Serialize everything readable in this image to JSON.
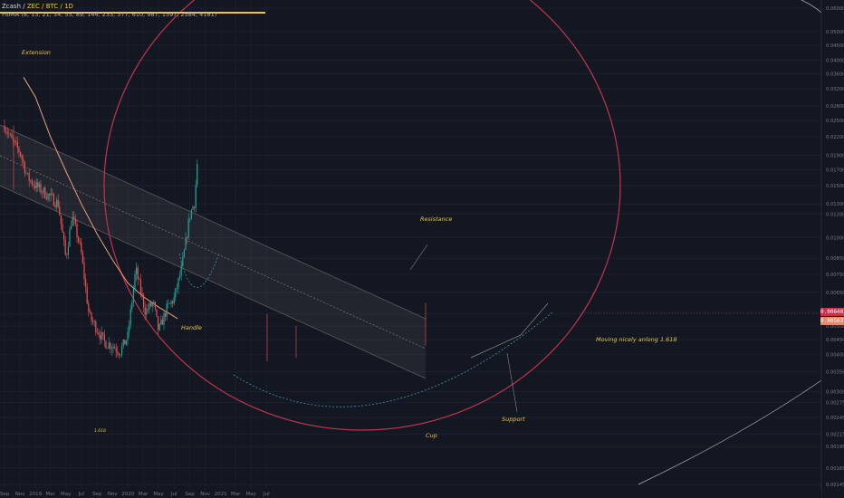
{
  "header": {
    "symbol_prefix": "Zcash / ",
    "symbol_accent": "ZEC / BTC / 1D",
    "indicator": "FibMA (8, 13, 21, 34, 55, 89, 144, 233, 377, 610, 987, 1597, 2584, 4181)"
  },
  "badges": {
    "current": "0.006402",
    "ma": "0.005637"
  },
  "colors": {
    "background": "#131722",
    "candle_up": "#26a69a",
    "candle_down": "#ef5350",
    "ellipse": "#c2344b",
    "channel": "#5a5a5a",
    "ma_line": "#e8a07a",
    "annotation": "#e8c34c",
    "arc": "#4a90a8",
    "badge_current": "#c2344b",
    "badge_ma": "#e48a6a"
  },
  "chart_data": {
    "type": "candlestick",
    "title": "",
    "xlabel": "",
    "ylabel": "",
    "y_scale": "log",
    "ylim": [
      0.0014,
      0.0605
    ],
    "x_tick_labels": [
      "Sep",
      "Nov",
      "2019",
      "Mar",
      "May",
      "Jul",
      "Sep",
      "Nov",
      "2020",
      "Mar",
      "May",
      "Jul",
      "Sep",
      "Nov",
      "2021",
      "Mar",
      "May",
      "Jul"
    ],
    "y_tick_labels": [
      "0.060000",
      "0.050000",
      "0.045000",
      "0.040000",
      "0.036000",
      "0.032000",
      "0.028000",
      "0.025000",
      "0.022000",
      "0.019000",
      "0.017000",
      "0.015000",
      "0.013000",
      "0.012000",
      "0.010000",
      "0.008500",
      "0.007500",
      "0.006500",
      "0.005500",
      "0.005000",
      "0.004500",
      "0.004000",
      "0.003500",
      "0.003000",
      "0.002750",
      "0.002450",
      "0.002150",
      "0.001950",
      "0.001650",
      "0.001450"
    ],
    "price_path": [
      [
        "2018-09-01",
        0.024
      ],
      [
        "2018-10-01",
        0.0212
      ],
      [
        "2018-11-01",
        0.0195
      ],
      [
        "2018-12-01",
        0.016
      ],
      [
        "2019-01-01",
        0.015
      ],
      [
        "2019-02-01",
        0.0143
      ],
      [
        "2019-03-01",
        0.0137
      ],
      [
        "2019-04-01",
        0.013
      ],
      [
        "2019-05-01",
        0.0085
      ],
      [
        "2019-05-25",
        0.0118
      ],
      [
        "2019-06-15",
        0.0102
      ],
      [
        "2019-07-01",
        0.0088
      ],
      [
        "2019-08-01",
        0.0054
      ],
      [
        "2019-09-01",
        0.0049
      ],
      [
        "2019-10-01",
        0.0044
      ],
      [
        "2019-11-01",
        0.0043
      ],
      [
        "2019-12-01",
        0.0041
      ],
      [
        "2019-12-31",
        0.0046
      ],
      [
        "2020-02-01",
        0.0078
      ],
      [
        "2020-03-10",
        0.0056
      ],
      [
        "2020-04-10",
        0.006
      ],
      [
        "2020-05-01",
        0.0048
      ],
      [
        "2020-06-01",
        0.0057
      ],
      [
        "2020-07-01",
        0.0062
      ],
      [
        "2020-08-01",
        0.0079
      ],
      [
        "2020-09-01",
        0.0119
      ],
      [
        "2020-09-20",
        0.0132
      ],
      [
        "2020-10-01",
        0.018
      ]
    ],
    "fib_ma_path": [
      [
        "2018-11-15",
        0.035
      ],
      [
        "2019-01-01",
        0.03
      ],
      [
        "2019-03-01",
        0.022
      ],
      [
        "2019-05-01",
        0.0168
      ],
      [
        "2019-07-01",
        0.013
      ],
      [
        "2019-09-01",
        0.0103
      ],
      [
        "2019-11-01",
        0.0084
      ],
      [
        "2020-01-01",
        0.007
      ],
      [
        "2020-03-01",
        0.0063
      ],
      [
        "2020-05-01",
        0.0058
      ],
      [
        "2020-06-15",
        0.0055
      ],
      [
        "2020-07-15",
        0.0053
      ]
    ],
    "annotations": [
      {
        "text": "Extension"
      },
      {
        "text": "Resistance"
      },
      {
        "text": "Handle"
      },
      {
        "text": "Moving nicely anlong 1.618"
      },
      {
        "text": "Support"
      },
      {
        "text": "Cup"
      },
      {
        "text": "1.618"
      }
    ]
  }
}
